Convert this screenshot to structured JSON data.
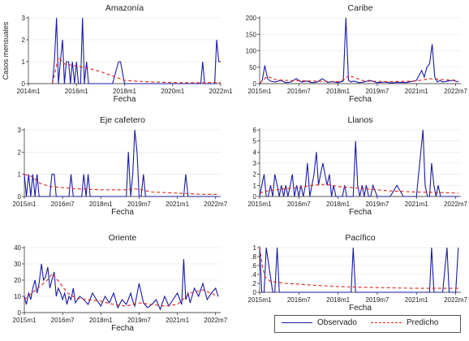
{
  "legend": {
    "observed": "Observado",
    "predicted": "Predicho",
    "observed_color": "#1a1aa6",
    "predicted_color": "#d9261c",
    "placement": "bottom-right"
  },
  "chart_data": [
    {
      "type": "line",
      "title": "Amazonía",
      "xlabel": "Fecha",
      "ylabel": "Casos mensuales",
      "xlim": [
        2014.0,
        2022.0
      ],
      "xticks": [
        2014.0,
        2016.0,
        2018.0,
        2020.0,
        2022.0
      ],
      "xticklabels": [
        "2014m1",
        "2016m1",
        "2018m1",
        "2020m1",
        "2022m1"
      ],
      "ylim": [
        0,
        3
      ],
      "yticks": [
        0,
        1,
        2,
        3
      ],
      "yticklabels": [
        "0",
        "1",
        "2",
        "3"
      ],
      "grid": true,
      "series": [
        {
          "name": "Observado",
          "x": [
            2015.0,
            2015.08,
            2015.17,
            2015.25,
            2015.33,
            2015.42,
            2015.5,
            2015.58,
            2015.67,
            2015.75,
            2015.83,
            2015.92,
            2016.0,
            2016.08,
            2016.17,
            2016.25,
            2016.33,
            2016.42,
            2016.5,
            2016.58,
            2016.67,
            2016.75,
            2016.83,
            2017.0,
            2017.5,
            2017.75,
            2017.83,
            2018.0,
            2018.08,
            2019.0,
            2020.0,
            2021.0,
            2021.17,
            2021.25,
            2021.33,
            2021.42,
            2021.5,
            2021.58,
            2021.67,
            2021.75,
            2021.83,
            2021.92,
            2022.0
          ],
          "y": [
            0,
            1,
            3,
            0,
            1,
            2,
            0,
            1,
            1,
            0,
            1,
            0,
            1,
            0,
            0,
            3,
            0,
            1,
            0,
            0,
            0,
            0,
            0,
            0,
            0,
            1,
            1,
            0,
            0,
            0,
            0,
            0,
            0,
            1,
            0,
            0,
            0,
            0,
            0,
            0,
            2,
            1,
            1
          ]
        },
        {
          "name": "Predicho",
          "x": [
            2015.0,
            2015.25,
            2015.5,
            2015.75,
            2016.0,
            2016.5,
            2017.0,
            2017.5,
            2018.0,
            2019.0,
            2020.0,
            2021.0,
            2021.5,
            2022.0
          ],
          "y": [
            0,
            1.2,
            0.9,
            0.85,
            0.8,
            0.7,
            0.55,
            0.35,
            0.15,
            0.08,
            0.05,
            0.04,
            0.05,
            0.05
          ]
        }
      ]
    },
    {
      "type": "line",
      "title": "Caribe",
      "xlabel": "Fecha",
      "ylabel": "",
      "xlim": [
        2015.0,
        2022.7
      ],
      "xticks": [
        2015.0,
        2016.5,
        2018.0,
        2019.5,
        2021.0,
        2022.5
      ],
      "xticklabels": [
        "2015m1",
        "2016m7",
        "2018m1",
        "2019m7",
        "2021m1",
        "2022m7"
      ],
      "ylim": [
        0,
        200
      ],
      "yticks": [
        0,
        50,
        100,
        150,
        200
      ],
      "yticklabels": [
        "0",
        "50",
        "100",
        "150",
        "200"
      ],
      "grid": true,
      "series": [
        {
          "name": "Observado",
          "x": [
            2015.0,
            2015.1,
            2015.2,
            2015.3,
            2015.4,
            2015.6,
            2015.8,
            2016.0,
            2016.2,
            2016.4,
            2016.6,
            2016.8,
            2017.0,
            2017.2,
            2017.4,
            2017.6,
            2017.8,
            2018.0,
            2018.2,
            2018.3,
            2018.4,
            2018.5,
            2018.6,
            2018.8,
            2019.0,
            2019.2,
            2019.5,
            2019.8,
            2020.0,
            2020.3,
            2020.6,
            2021.0,
            2021.2,
            2021.3,
            2021.4,
            2021.5,
            2021.6,
            2021.7,
            2021.8,
            2021.9,
            2022.0,
            2022.2,
            2022.4,
            2022.6
          ],
          "y": [
            0,
            10,
            55,
            15,
            8,
            5,
            10,
            3,
            5,
            15,
            5,
            8,
            3,
            5,
            15,
            4,
            6,
            3,
            8,
            200,
            10,
            5,
            8,
            3,
            5,
            10,
            3,
            5,
            2,
            4,
            3,
            10,
            40,
            20,
            50,
            60,
            120,
            20,
            5,
            10,
            5,
            8,
            10,
            5
          ]
        },
        {
          "name": "Predicho",
          "x": [
            2015.0,
            2015.3,
            2015.6,
            2016.0,
            2017.0,
            2018.0,
            2018.3,
            2018.4,
            2019.0,
            2020.0,
            2021.0,
            2021.5,
            2022.0,
            2022.6
          ],
          "y": [
            2,
            22,
            12,
            10,
            8,
            6,
            15,
            25,
            8,
            6,
            8,
            15,
            12,
            10
          ]
        }
      ]
    },
    {
      "type": "line",
      "title": "Eje cafetero",
      "xlabel": "Fecha",
      "ylabel": "",
      "xlim": [
        2015.0,
        2022.7
      ],
      "xticks": [
        2015.0,
        2016.5,
        2018.0,
        2019.5,
        2021.0,
        2022.5
      ],
      "xticklabels": [
        "2015m1",
        "2016m7",
        "2018m1",
        "2019m7",
        "2021m1",
        "2022m7"
      ],
      "ylim": [
        0,
        3
      ],
      "yticks": [
        0,
        1,
        2,
        3
      ],
      "yticklabels": [
        "0",
        "1",
        "2",
        "3"
      ],
      "grid": true,
      "series": [
        {
          "name": "Observado",
          "x": [
            2015.0,
            2015.08,
            2015.17,
            2015.25,
            2015.33,
            2015.42,
            2015.5,
            2015.58,
            2015.67,
            2015.75,
            2016.0,
            2016.08,
            2016.17,
            2016.25,
            2016.5,
            2016.75,
            2016.83,
            2016.92,
            2017.0,
            2017.25,
            2017.33,
            2017.42,
            2017.5,
            2017.58,
            2017.67,
            2018.0,
            2018.5,
            2019.0,
            2019.08,
            2019.17,
            2019.25,
            2019.33,
            2019.42,
            2019.5,
            2019.58,
            2019.67,
            2019.75,
            2019.83,
            2020.0,
            2020.5,
            2021.0,
            2021.25,
            2021.33,
            2021.42,
            2021.5,
            2022.0,
            2022.6
          ],
          "y": [
            1,
            0,
            1,
            0,
            1,
            0,
            1,
            0,
            0,
            0,
            0,
            1,
            1,
            0,
            0,
            0,
            1,
            0,
            0,
            0,
            1,
            0,
            1,
            0,
            0,
            0,
            0,
            0,
            2,
            0,
            1,
            3,
            2,
            0,
            0,
            1,
            0,
            0,
            0,
            0,
            0,
            0,
            1,
            0,
            0,
            0,
            0
          ]
        },
        {
          "name": "Predicho",
          "x": [
            2015.0,
            2015.3,
            2015.6,
            2016.0,
            2016.5,
            2017.0,
            2018.0,
            2019.0,
            2019.3,
            2019.6,
            2020.0,
            2021.0,
            2022.0,
            2022.6
          ],
          "y": [
            1.0,
            0.9,
            0.6,
            0.45,
            0.4,
            0.35,
            0.3,
            0.3,
            0.35,
            0.3,
            0.2,
            0.15,
            0.1,
            0.1
          ]
        }
      ]
    },
    {
      "type": "line",
      "title": "Llanos",
      "xlabel": "Fecha",
      "ylabel": "",
      "xlim": [
        2015.0,
        2022.7
      ],
      "xticks": [
        2015.0,
        2016.5,
        2018.0,
        2019.5,
        2021.0,
        2022.5
      ],
      "xticklabels": [
        "2015m1",
        "2016m7",
        "2018m1",
        "2019m7",
        "2021m1",
        "2022m7"
      ],
      "ylim": [
        0,
        6
      ],
      "yticks": [
        0,
        1,
        2,
        3,
        4,
        5,
        6
      ],
      "yticklabels": [
        "0",
        "1",
        "2",
        "3",
        "4",
        "5",
        "6"
      ],
      "grid": true,
      "series": [
        {
          "name": "Observado",
          "x": [
            2015.0,
            2015.08,
            2015.17,
            2015.25,
            2015.33,
            2015.42,
            2015.5,
            2015.58,
            2015.67,
            2015.75,
            2015.83,
            2015.92,
            2016.0,
            2016.08,
            2016.17,
            2016.25,
            2016.33,
            2016.42,
            2016.5,
            2016.58,
            2016.67,
            2016.75,
            2016.83,
            2016.92,
            2017.0,
            2017.08,
            2017.17,
            2017.25,
            2017.33,
            2017.42,
            2017.5,
            2017.58,
            2017.67,
            2017.75,
            2017.83,
            2017.92,
            2018.0,
            2018.08,
            2018.17,
            2018.25,
            2018.33,
            2018.42,
            2018.5,
            2018.58,
            2018.67,
            2018.75,
            2018.83,
            2018.92,
            2019.0,
            2019.08,
            2019.17,
            2019.25,
            2019.33,
            2019.5,
            2019.75,
            2020.0,
            2020.25,
            2020.5,
            2021.0,
            2021.25,
            2021.33,
            2021.42,
            2021.5,
            2021.58,
            2021.67,
            2021.75,
            2021.83,
            2021.92,
            2022.0,
            2022.25,
            2022.6
          ],
          "y": [
            0,
            1,
            2,
            0,
            0,
            1,
            0,
            2,
            1,
            0,
            1,
            0,
            1,
            0,
            1,
            2,
            0,
            1,
            0,
            1,
            0,
            1,
            3,
            0,
            1,
            2,
            4,
            1,
            2,
            3,
            2,
            1,
            2,
            0,
            1,
            0,
            0,
            0,
            0,
            1,
            0,
            0,
            0,
            0,
            5,
            1,
            0,
            1,
            0,
            1,
            0,
            0,
            1,
            0,
            0,
            0,
            1,
            0,
            0,
            6,
            1,
            0,
            0,
            3,
            1,
            0,
            1,
            0,
            0,
            0,
            0
          ]
        },
        {
          "name": "Predicho",
          "x": [
            2015.0,
            2015.3,
            2015.6,
            2016.0,
            2016.5,
            2017.0,
            2017.5,
            2018.0,
            2018.5,
            2019.0,
            2019.5,
            2020.0,
            2021.0,
            2022.0,
            2022.6
          ],
          "y": [
            0.3,
            0.5,
            0.6,
            0.7,
            0.8,
            1.0,
            1.1,
            0.9,
            0.8,
            0.7,
            0.6,
            0.5,
            0.4,
            0.35,
            0.3
          ]
        }
      ]
    },
    {
      "type": "line",
      "title": "Oriente",
      "xlabel": "Fecha",
      "ylabel": "",
      "xlim": [
        2015.0,
        2022.7
      ],
      "xticks": [
        2015.0,
        2016.5,
        2018.0,
        2019.5,
        2021.0,
        2022.5
      ],
      "xticklabels": [
        "2015m1",
        "2016m7",
        "2018m1",
        "2019m7",
        "2021m1",
        "2022m7"
      ],
      "ylim": [
        0,
        40
      ],
      "yticks": [
        0,
        10,
        20,
        30,
        40
      ],
      "yticklabels": [
        "0",
        "10",
        "20",
        "30",
        "40"
      ],
      "grid": true,
      "series": [
        {
          "name": "Observado",
          "x": [
            2015.0,
            2015.08,
            2015.17,
            2015.25,
            2015.33,
            2015.42,
            2015.5,
            2015.58,
            2015.67,
            2015.75,
            2015.83,
            2015.92,
            2016.0,
            2016.08,
            2016.17,
            2016.25,
            2016.33,
            2016.42,
            2016.5,
            2016.58,
            2016.67,
            2016.75,
            2016.83,
            2016.92,
            2017.0,
            2017.17,
            2017.33,
            2017.5,
            2017.67,
            2017.83,
            2018.0,
            2018.17,
            2018.33,
            2018.5,
            2018.67,
            2018.83,
            2019.0,
            2019.17,
            2019.25,
            2019.33,
            2019.5,
            2019.67,
            2019.83,
            2020.0,
            2020.17,
            2020.33,
            2020.5,
            2020.67,
            2020.83,
            2021.0,
            2021.17,
            2021.25,
            2021.33,
            2021.42,
            2021.5,
            2021.67,
            2021.83,
            2022.0,
            2022.17,
            2022.33,
            2022.5,
            2022.6
          ],
          "y": [
            10,
            5,
            12,
            8,
            15,
            20,
            12,
            18,
            30,
            20,
            22,
            28,
            15,
            20,
            25,
            10,
            15,
            12,
            8,
            12,
            5,
            10,
            8,
            15,
            6,
            10,
            8,
            5,
            12,
            8,
            4,
            10,
            6,
            12,
            3,
            8,
            5,
            12,
            7,
            4,
            18,
            6,
            3,
            5,
            8,
            2,
            10,
            4,
            8,
            12,
            5,
            33,
            8,
            12,
            6,
            15,
            10,
            18,
            8,
            12,
            15,
            10
          ]
        },
        {
          "name": "Predicho",
          "x": [
            2015.0,
            2015.3,
            2015.6,
            2015.9,
            2016.1,
            2016.4,
            2016.7,
            2017.0,
            2017.5,
            2018.0,
            2018.5,
            2019.0,
            2019.5,
            2020.0,
            2020.5,
            2021.0,
            2021.5,
            2022.0,
            2022.6
          ],
          "y": [
            8,
            12,
            16,
            20,
            24,
            18,
            12,
            9,
            8,
            7,
            5,
            4,
            6,
            5,
            4,
            5,
            12,
            14,
            10
          ]
        }
      ]
    },
    {
      "type": "line",
      "title": "Pacífico",
      "xlabel": "Fecha",
      "ylabel": "",
      "xlim": [
        2015.0,
        2022.7
      ],
      "xticks": [
        2015.0,
        2016.5,
        2018.0,
        2019.5,
        2021.0,
        2022.5
      ],
      "xticklabels": [
        "2015m1",
        "2016m7",
        "2018m1",
        "2019m7",
        "2021m1",
        "2022m7"
      ],
      "ylim": [
        0,
        1
      ],
      "yticks": [
        0,
        0.2,
        0.4,
        0.6,
        0.8,
        1.0
      ],
      "yticklabels": [
        "0",
        ".2",
        ".4",
        ".6",
        ".8",
        "1"
      ],
      "grid": true,
      "series": [
        {
          "name": "Observado",
          "x": [
            2015.0,
            2015.08,
            2015.17,
            2015.25,
            2015.5,
            2015.58,
            2015.67,
            2015.75,
            2016.0,
            2016.5,
            2017.0,
            2017.5,
            2018.0,
            2018.5,
            2018.58,
            2018.67,
            2019.0,
            2019.5,
            2020.0,
            2020.5,
            2021.0,
            2021.5,
            2021.58,
            2021.67,
            2022.0,
            2022.17,
            2022.25,
            2022.33,
            2022.5,
            2022.6
          ],
          "y": [
            1,
            0,
            0,
            1,
            0,
            0,
            1,
            0,
            0,
            0,
            0,
            0,
            0,
            0,
            1,
            0,
            0,
            0,
            0,
            0,
            0,
            0,
            1,
            0,
            0,
            1,
            0,
            0,
            0,
            1
          ]
        },
        {
          "name": "Predicho",
          "x": [
            2015.0,
            2015.1,
            2015.2,
            2015.4,
            2015.7,
            2016.0,
            2016.5,
            2017.0,
            2018.0,
            2019.0,
            2020.0,
            2021.0,
            2022.0,
            2022.6
          ],
          "y": [
            1.0,
            0.6,
            0.35,
            0.25,
            0.22,
            0.2,
            0.18,
            0.16,
            0.13,
            0.11,
            0.1,
            0.09,
            0.09,
            0.09
          ]
        }
      ]
    }
  ]
}
